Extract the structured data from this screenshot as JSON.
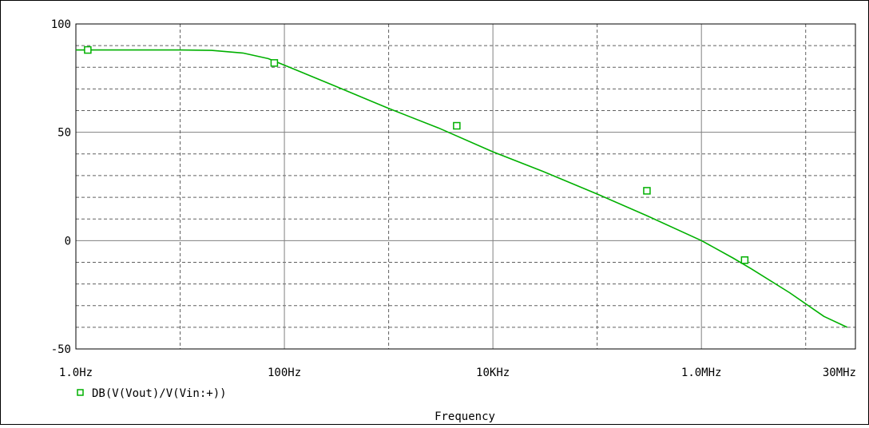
{
  "chart_data": {
    "type": "line",
    "x_scale": "log",
    "x_ticks": [
      {
        "value": 1,
        "label": "1.0Hz"
      },
      {
        "value": 100,
        "label": "100Hz"
      },
      {
        "value": 10000,
        "label": "10KHz"
      },
      {
        "value": 1000000,
        "label": "1.0MHz"
      },
      {
        "value": 30000000,
        "label": "30MHz"
      }
    ],
    "y_ticks": [
      {
        "value": 100,
        "label": "100"
      },
      {
        "value": 50,
        "label": "50"
      },
      {
        "value": 0,
        "label": "0"
      },
      {
        "value": -50,
        "label": "-50"
      }
    ],
    "xlim": [
      1,
      30000000
    ],
    "ylim": [
      -50,
      100
    ],
    "xlabel": "Frequency",
    "ylabel": "",
    "grid": true,
    "legend_placement": "bottom-left",
    "series": [
      {
        "name": "DB(V(Vout)/V(Vin:+))",
        "color": "#00b000",
        "marker": "square",
        "points": [
          [
            1,
            88
          ],
          [
            5,
            88
          ],
          [
            10,
            88
          ],
          [
            20,
            87.8
          ],
          [
            40,
            86.6
          ],
          [
            70,
            84
          ],
          [
            100,
            81
          ],
          [
            300,
            71.5
          ],
          [
            1000,
            61
          ],
          [
            3000,
            52
          ],
          [
            10000,
            41
          ],
          [
            30000,
            32
          ],
          [
            100000,
            21.5
          ],
          [
            300000,
            11.5
          ],
          [
            1000000,
            0
          ],
          [
            2000000,
            -8
          ],
          [
            3000000,
            -13
          ],
          [
            7000000,
            -24
          ],
          [
            15000000,
            -35
          ],
          [
            25000000,
            -40
          ]
        ],
        "markers": [
          [
            1.3,
            88
          ],
          [
            80,
            82
          ],
          [
            4500,
            53
          ],
          [
            300000,
            23
          ],
          [
            2600000,
            -9
          ]
        ]
      }
    ]
  }
}
